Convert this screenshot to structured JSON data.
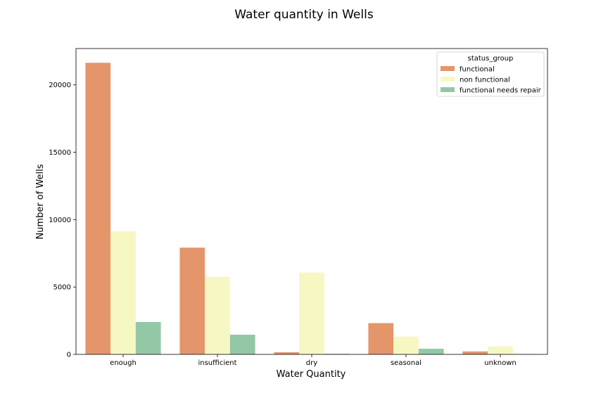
{
  "chart_data": {
    "type": "bar",
    "title": "Water quantity in Wells",
    "xlabel": "Water Quantity",
    "ylabel": "Number of Wells",
    "categories": [
      "enough",
      "insufficient",
      "dry",
      "seasonal",
      "unknown"
    ],
    "series": [
      {
        "name": "functional",
        "color": "#e5956a",
        "values": [
          21640,
          7920,
          160,
          2320,
          220
        ]
      },
      {
        "name": "non functional",
        "color": "#f7f7c4",
        "values": [
          9140,
          5760,
          6070,
          1320,
          590
        ]
      },
      {
        "name": "functional needs repair",
        "color": "#93c8a7",
        "values": [
          2400,
          1460,
          40,
          420,
          20
        ]
      }
    ],
    "yticks": [
      0,
      5000,
      10000,
      15000,
      20000
    ],
    "ylim": [
      0,
      22700
    ],
    "legend": {
      "title": "status_group",
      "position": "top-right"
    },
    "grid": false
  }
}
